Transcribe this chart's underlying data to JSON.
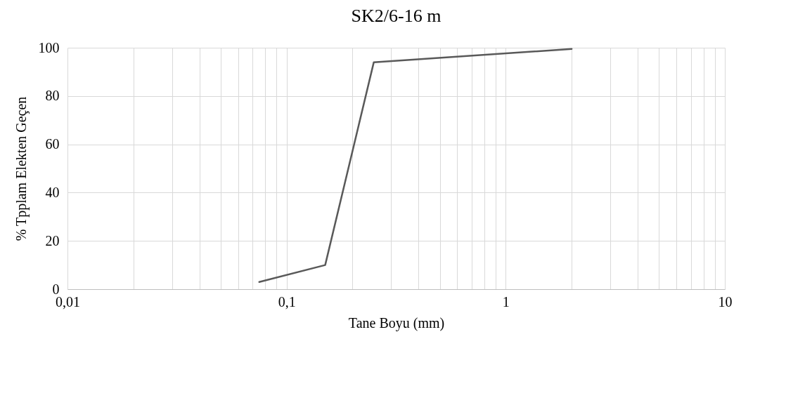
{
  "chart_data": {
    "type": "line",
    "title": "SK2/6-16 m",
    "xlabel": "Tane Boyu (mm)",
    "ylabel": "% Tpplam Elekten Geçen",
    "x": [
      0.075,
      0.15,
      0.25,
      2
    ],
    "series": [
      {
        "color": "#595959",
        "values": [
          3,
          10,
          94,
          99.5
        ]
      }
    ],
    "log": "x",
    "xlim": [
      0.01,
      10
    ],
    "xticks": [
      {
        "value": 0.01,
        "label": "0,01"
      },
      {
        "value": 0.02,
        "label": null
      },
      {
        "value": 0.03,
        "label": null
      },
      {
        "value": 0.04,
        "label": null
      },
      {
        "value": 0.05,
        "label": null
      },
      {
        "value": 0.06,
        "label": null
      },
      {
        "value": 0.07,
        "label": null
      },
      {
        "value": 0.08,
        "label": null
      },
      {
        "value": 0.09,
        "label": null
      },
      {
        "value": 0.1,
        "label": "0,1"
      },
      {
        "value": 0.2,
        "label": null
      },
      {
        "value": 0.3,
        "label": null
      },
      {
        "value": 0.4,
        "label": null
      },
      {
        "value": 0.5,
        "label": null
      },
      {
        "value": 0.6,
        "label": null
      },
      {
        "value": 0.7,
        "label": null
      },
      {
        "value": 0.8,
        "label": null
      },
      {
        "value": 0.9,
        "label": null
      },
      1,
      {
        "value": 2,
        "label": null
      },
      {
        "value": 3,
        "label": null
      },
      {
        "value": 4,
        "label": null
      },
      {
        "value": 5,
        "label": null
      },
      {
        "value": 6,
        "label": null
      },
      {
        "value": 7,
        "label": null
      },
      {
        "value": 8,
        "label": null
      },
      {
        "value": 9,
        "label": null
      },
      10
    ],
    "ylim": [
      0,
      100
    ],
    "yticks": [
      0,
      20,
      40,
      60,
      80,
      100
    ],
    "grid": true,
    "marker": "none",
    "line_style": "solid"
  }
}
